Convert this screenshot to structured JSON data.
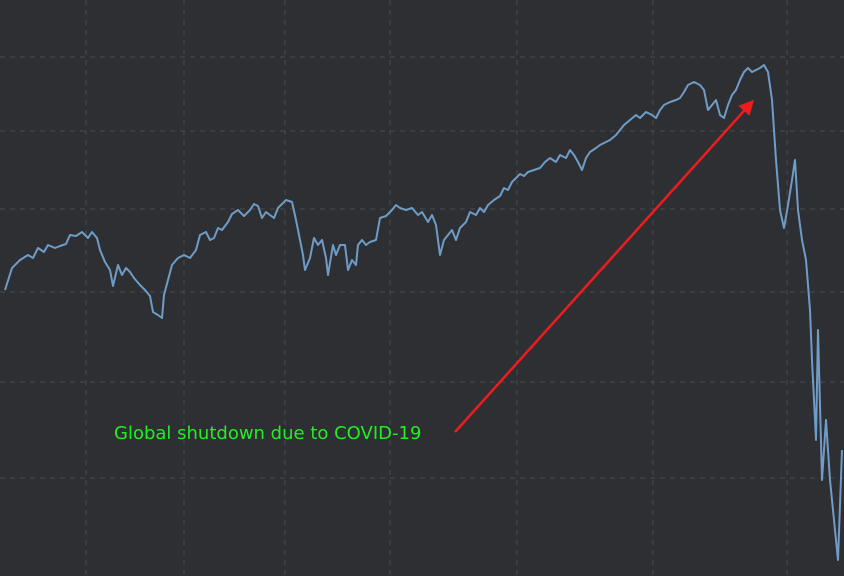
{
  "chart_data": {
    "type": "line",
    "annotation": "Global shutdown due to COVID-19",
    "color": "#6f9cc6",
    "grid": true,
    "xlim": [
      0,
      844
    ],
    "ylim": [
      0,
      576
    ],
    "xticks": [
      86,
      184,
      285,
      390,
      517,
      653,
      787
    ],
    "yticks": [
      98,
      194,
      284,
      367,
      445,
      519
    ],
    "x": [
      5,
      12,
      20,
      28,
      33,
      38,
      44,
      48,
      55,
      60,
      66,
      70,
      76,
      82,
      88,
      92,
      97,
      100,
      105,
      110,
      113,
      118,
      122,
      126,
      130,
      134,
      140,
      145,
      150,
      153,
      158,
      162,
      164,
      168,
      172,
      178,
      184,
      190,
      196,
      200,
      206,
      210,
      214,
      218,
      222,
      228,
      232,
      238,
      244,
      250,
      254,
      258,
      262,
      266,
      270,
      274,
      278,
      282,
      286,
      292,
      296,
      300,
      303,
      305,
      310,
      314,
      318,
      322,
      326,
      328,
      333,
      336,
      340,
      345,
      348,
      352,
      356,
      358,
      362,
      366,
      370,
      376,
      380,
      386,
      392,
      396,
      400,
      406,
      412,
      418,
      422,
      428,
      432,
      436,
      440,
      444,
      448,
      452,
      456,
      460,
      466,
      470,
      476,
      480,
      484,
      488,
      494,
      500,
      504,
      508,
      512,
      516,
      520,
      524,
      528,
      534,
      540,
      545,
      550,
      556,
      560,
      566,
      570,
      574,
      578,
      582,
      586,
      590,
      596,
      600,
      606,
      610,
      616,
      620,
      624,
      630,
      636,
      640,
      646,
      652,
      656,
      660,
      664,
      670,
      676,
      680,
      684,
      688,
      694,
      700,
      704,
      708,
      712,
      716,
      720,
      724,
      728,
      732,
      736,
      740,
      744,
      748,
      752,
      756,
      760,
      764,
      768,
      772,
      776,
      780,
      784,
      788,
      792,
      795,
      798,
      802,
      806,
      810,
      812,
      816,
      818,
      822,
      826,
      830,
      834,
      838,
      842
    ],
    "values": [
      286,
      308,
      316,
      321,
      318,
      328,
      324,
      331,
      328,
      330,
      332,
      341,
      340,
      344,
      338,
      344,
      338,
      326,
      314,
      306,
      290,
      311,
      301,
      308,
      304,
      298,
      291,
      286,
      280,
      264,
      261,
      258,
      281,
      296,
      311,
      318,
      321,
      318,
      326,
      341,
      344,
      336,
      338,
      348,
      346,
      354,
      362,
      366,
      360,
      366,
      372,
      370,
      358,
      364,
      361,
      358,
      368,
      372,
      376,
      374,
      356,
      336,
      321,
      306,
      318,
      338,
      331,
      336,
      318,
      301,
      331,
      321,
      331,
      331,
      306,
      316,
      311,
      331,
      336,
      331,
      334,
      336,
      358,
      360,
      366,
      371,
      368,
      366,
      368,
      361,
      364,
      354,
      361,
      351,
      321,
      336,
      341,
      346,
      336,
      348,
      354,
      364,
      361,
      368,
      364,
      371,
      376,
      380,
      388,
      386,
      394,
      398,
      402,
      400,
      404,
      406,
      408,
      414,
      418,
      414,
      421,
      418,
      426,
      421,
      414,
      406,
      418,
      424,
      428,
      431,
      434,
      436,
      441,
      446,
      451,
      456,
      461,
      458,
      464,
      461,
      458,
      466,
      471,
      474,
      476,
      478,
      484,
      491,
      494,
      491,
      486,
      466,
      471,
      476,
      461,
      458,
      471,
      481,
      486,
      496,
      504,
      508,
      504,
      506,
      508,
      511,
      504,
      476,
      416,
      366,
      348,
      371,
      396,
      416,
      366,
      336,
      316,
      266,
      216,
      136,
      246,
      96,
      156,
      96,
      56,
      16,
      126
    ]
  }
}
